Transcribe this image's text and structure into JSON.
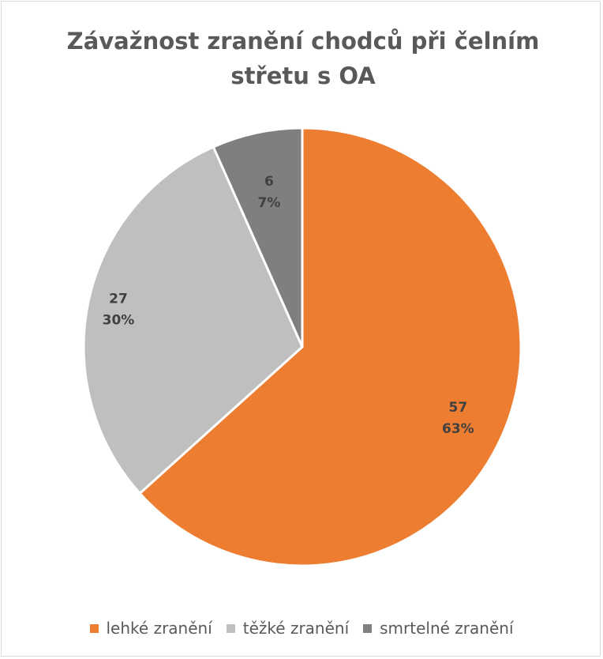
{
  "chart_data": {
    "type": "pie",
    "title": "Závažnost zranění chodců při čelním střetu s OA",
    "categories": [
      "lehké zranění",
      "těžké zranění",
      "smrtelné zranění"
    ],
    "values": [
      57,
      27,
      6
    ],
    "percent_labels": [
      "63%",
      "30%",
      "7%"
    ],
    "colors": [
      "#ed7d31",
      "#bfbfbf",
      "#7f7f7f"
    ],
    "data_label_color": "#404040",
    "legend_position": "bottom",
    "start_angle_deg": 0,
    "direction": "clockwise"
  }
}
